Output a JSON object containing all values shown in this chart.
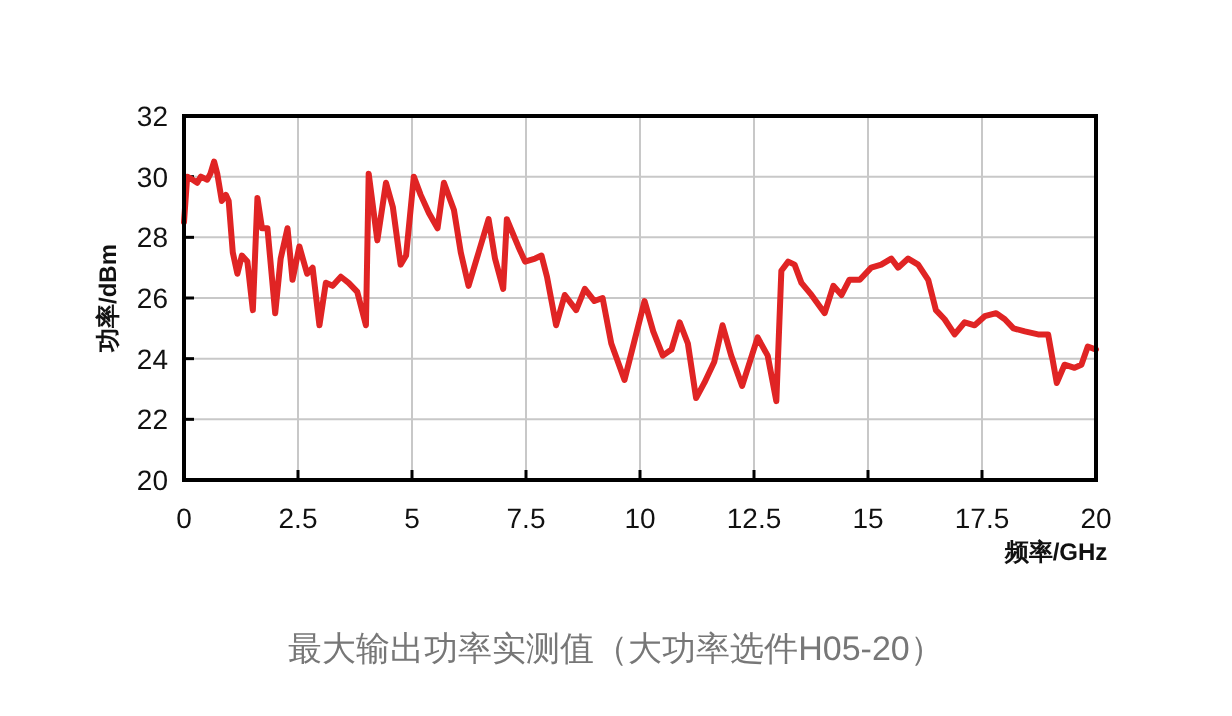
{
  "chart_data": {
    "type": "line",
    "xlabel": "频率/GHz",
    "ylabel": "功率/dBm",
    "annotations": [
      "最大输出功率实测值（大功率选件H05-20）"
    ],
    "xlim": [
      0,
      20
    ],
    "ylim": [
      20,
      32
    ],
    "xticks": [
      0,
      2.5,
      5,
      7.5,
      10,
      12.5,
      15,
      17.5,
      20
    ],
    "yticks": [
      20,
      22,
      24,
      26,
      28,
      30,
      32
    ],
    "grid": true,
    "series": [
      {
        "color": "#e02424",
        "x": [
          0,
          0.07,
          0.19,
          0.29,
          0.37,
          0.51,
          0.58,
          0.66,
          0.73,
          0.83,
          0.92,
          0.98,
          1.07,
          1.17,
          1.27,
          1.39,
          1.51,
          1.61,
          1.71,
          1.83,
          2.0,
          2.12,
          2.27,
          2.38,
          2.53,
          2.7,
          2.82,
          2.97,
          3.11,
          3.26,
          3.44,
          3.61,
          3.8,
          3.99,
          4.05,
          4.24,
          4.43,
          4.58,
          4.75,
          4.87,
          5.04,
          5.19,
          5.37,
          5.56,
          5.7,
          5.92,
          6.07,
          6.24,
          6.46,
          6.68,
          6.82,
          7.0,
          7.08,
          7.33,
          7.48,
          7.7,
          7.84,
          7.96,
          8.16,
          8.35,
          8.6,
          8.79,
          9.0,
          9.18,
          9.37,
          9.66,
          9.88,
          10.1,
          10.29,
          10.5,
          10.69,
          10.87,
          11.05,
          11.23,
          11.41,
          11.63,
          11.81,
          12.0,
          12.24,
          12.58,
          12.8,
          12.99,
          13.1,
          13.25,
          13.39,
          13.54,
          13.76,
          14.05,
          14.24,
          14.42,
          14.59,
          14.82,
          15.07,
          15.29,
          15.51,
          15.66,
          15.88,
          16.1,
          16.32,
          16.49,
          16.68,
          16.9,
          17.12,
          17.34,
          17.56,
          17.81,
          18.0,
          18.19,
          18.44,
          18.73,
          18.95,
          19.14,
          19.31,
          19.53,
          19.68,
          19.82,
          20.0
        ],
        "values": [
          28.5,
          30.0,
          29.9,
          29.8,
          30.0,
          29.9,
          30.1,
          30.5,
          30.1,
          29.2,
          29.4,
          29.2,
          27.5,
          26.8,
          27.4,
          27.2,
          25.6,
          29.3,
          28.3,
          28.3,
          25.5,
          27.3,
          28.3,
          26.6,
          27.7,
          26.8,
          27.0,
          25.1,
          26.5,
          26.4,
          26.7,
          26.5,
          26.2,
          25.1,
          30.1,
          27.9,
          29.8,
          29.0,
          27.1,
          27.4,
          30.0,
          29.4,
          28.8,
          28.3,
          29.8,
          28.9,
          27.5,
          26.4,
          27.5,
          28.6,
          27.3,
          26.3,
          28.6,
          27.7,
          27.2,
          27.3,
          27.4,
          26.7,
          25.1,
          26.1,
          25.6,
          26.3,
          25.9,
          26.0,
          24.5,
          23.3,
          24.6,
          25.9,
          24.9,
          24.1,
          24.3,
          25.2,
          24.5,
          22.7,
          23.2,
          23.9,
          25.1,
          24.1,
          23.1,
          24.7,
          24.1,
          22.6,
          26.9,
          27.2,
          27.1,
          26.5,
          26.1,
          25.5,
          26.4,
          26.1,
          26.6,
          26.6,
          27.0,
          27.1,
          27.3,
          27.0,
          27.3,
          27.1,
          26.6,
          25.6,
          25.3,
          24.8,
          25.2,
          25.1,
          25.4,
          25.5,
          25.3,
          25.0,
          24.9,
          24.8,
          24.8,
          23.2,
          23.8,
          23.7,
          23.8,
          24.4,
          24.3
        ]
      }
    ]
  }
}
